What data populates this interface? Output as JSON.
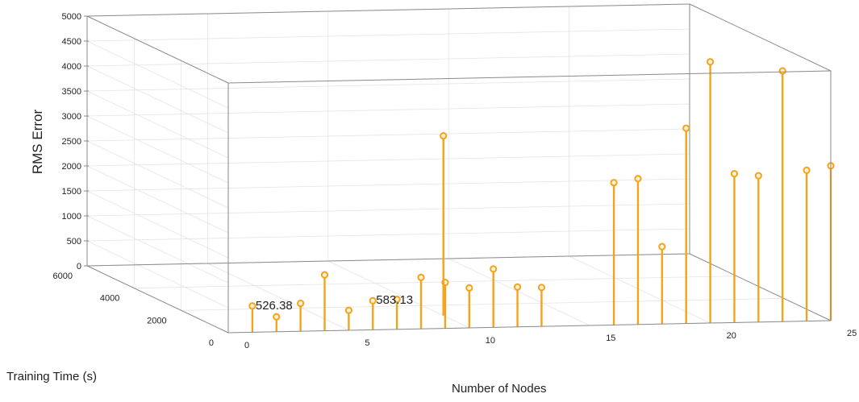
{
  "chart_data": {
    "type": "stem3d",
    "xlabel": "Number of Nodes",
    "ylabel": "Training Time (s)",
    "zlabel": "RMS Error",
    "xlim": [
      0,
      25
    ],
    "ylim": [
      0,
      6000
    ],
    "zlim": [
      0,
      5000
    ],
    "x_ticks": [
      "0",
      "5",
      "10",
      "15",
      "20",
      "25"
    ],
    "y_ticks": [
      "0",
      "2000",
      "4000",
      "6000"
    ],
    "z_ticks": [
      "0",
      "500",
      "1000",
      "1500",
      "2000",
      "2500",
      "3000",
      "3500",
      "4000",
      "4500",
      "5000"
    ],
    "grid": true,
    "stem_color": "#f5a31a",
    "points": [
      {
        "x": 1,
        "y": 0,
        "z": 526.38
      },
      {
        "x": 2,
        "y": 0,
        "z": 300
      },
      {
        "x": 3,
        "y": 0,
        "z": 560
      },
      {
        "x": 4,
        "y": 0,
        "z": 1120
      },
      {
        "x": 5,
        "y": 0,
        "z": 400
      },
      {
        "x": 6,
        "y": 0,
        "z": 583.13
      },
      {
        "x": 7,
        "y": 0,
        "z": 600
      },
      {
        "x": 8,
        "y": 0,
        "z": 1030
      },
      {
        "x": 9,
        "y": 0,
        "z": 920
      },
      {
        "x": 10,
        "y": 0,
        "z": 800
      },
      {
        "x": 11,
        "y": 0,
        "z": 1170
      },
      {
        "x": 12,
        "y": 0,
        "z": 800
      },
      {
        "x": 13,
        "y": 0,
        "z": 780
      },
      {
        "x": 10,
        "y": 1100,
        "z": 3600
      },
      {
        "x": 16,
        "y": 0,
        "z": 2850
      },
      {
        "x": 17,
        "y": 0,
        "z": 2920
      },
      {
        "x": 18,
        "y": 0,
        "z": 1550
      },
      {
        "x": 19,
        "y": 0,
        "z": 3910
      },
      {
        "x": 20,
        "y": 0,
        "z": 5230
      },
      {
        "x": 21,
        "y": 0,
        "z": 2980
      },
      {
        "x": 22,
        "y": 0,
        "z": 2930
      },
      {
        "x": 23,
        "y": 0,
        "z": 5020
      },
      {
        "x": 24,
        "y": 0,
        "z": 3020
      },
      {
        "x": 25,
        "y": 0,
        "z": 3100
      }
    ],
    "annotations": [
      {
        "text": "526.38",
        "x": 1,
        "y": 0,
        "z": 526.38
      },
      {
        "text": "583.13",
        "x": 6,
        "y": 0,
        "z": 583.13
      }
    ]
  }
}
